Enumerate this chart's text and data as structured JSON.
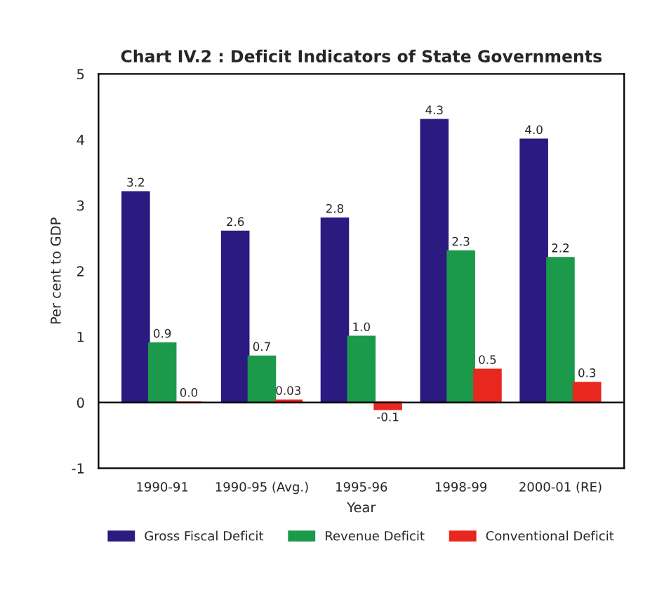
{
  "chart_data": {
    "type": "bar",
    "title": "Chart IV.2 : Deficit Indicators of State Governments",
    "categories": [
      "1990-91",
      "1990-95 (Avg.)",
      "1995-96",
      "1998-99",
      "2000-01 (RE)"
    ],
    "series": [
      {
        "name": "Gross Fiscal Deficit",
        "color": "#2b1a80",
        "values": [
          3.2,
          2.6,
          2.8,
          4.3,
          4.0
        ],
        "value_labels": [
          "3.2",
          "2.6",
          "2.8",
          "4.3",
          "4.0"
        ]
      },
      {
        "name": "Revenue Deficit",
        "color": "#1a9a4a",
        "values": [
          0.9,
          0.7,
          1.0,
          2.3,
          2.2
        ],
        "value_labels": [
          "0.9",
          "0.7",
          "1.0",
          "2.3",
          "2.2"
        ]
      },
      {
        "name": "Conventional Deficit",
        "color": "#e8281e",
        "values": [
          0.0,
          0.03,
          -0.1,
          0.5,
          0.3
        ],
        "value_labels": [
          "0.0",
          "0.03",
          "-0.1",
          "0.5",
          "0.3"
        ]
      }
    ],
    "xlabel": "Year",
    "ylabel": "Per cent to GDP",
    "ylim": [
      -1,
      5
    ],
    "yticks": [
      -1,
      0,
      1,
      2,
      3,
      4,
      5
    ],
    "legend": "bottom"
  }
}
